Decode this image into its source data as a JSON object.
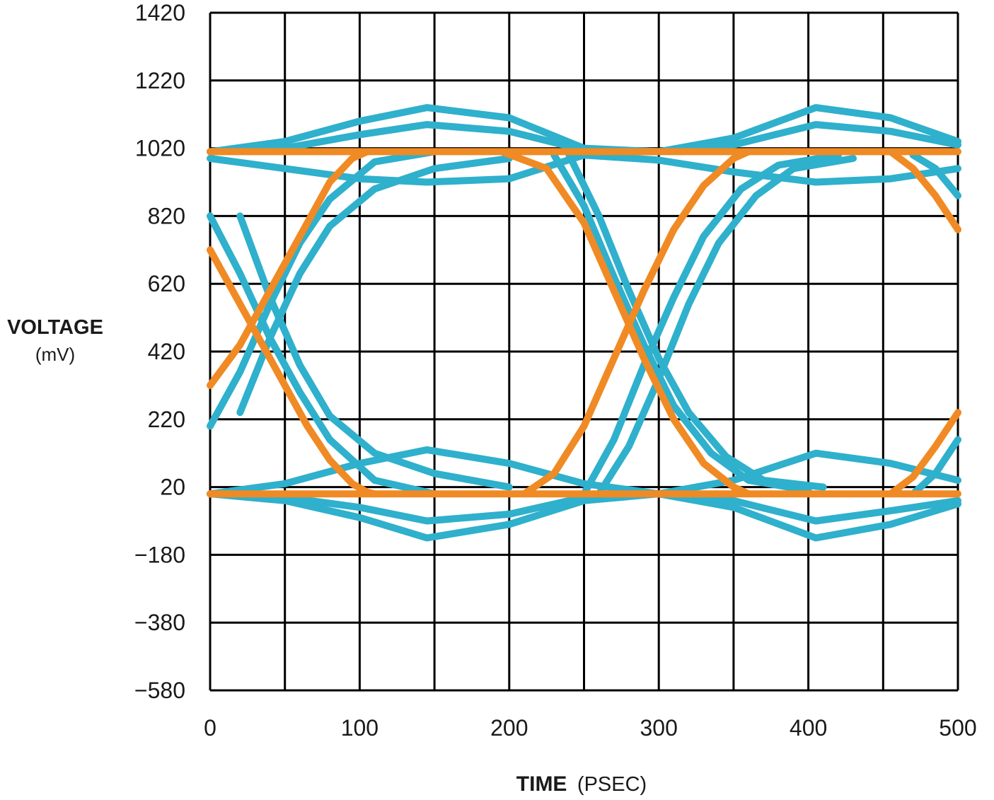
{
  "chart_data": {
    "type": "line",
    "title": "",
    "xlabel": "TIME",
    "xlabel_unit": "(PSEC)",
    "ylabel": "VOLTAGE",
    "ylabel_unit": "(mV)",
    "xlim": [
      0,
      500
    ],
    "ylim": [
      -580,
      1420
    ],
    "xticks": [
      0,
      100,
      200,
      300,
      400,
      500
    ],
    "xtick_labels": [
      "0",
      "100",
      "200",
      "300",
      "400",
      "500"
    ],
    "xgrid": [
      0,
      50,
      100,
      150,
      200,
      250,
      300,
      350,
      400,
      450,
      500
    ],
    "yticks": [
      1420,
      1220,
      1020,
      820,
      620,
      420,
      220,
      20,
      -180,
      -380,
      -580
    ],
    "ytick_labels": [
      "1420",
      "1220",
      "1020",
      "820",
      "620",
      "420",
      "220",
      "20",
      "−180",
      "−380",
      "−580"
    ],
    "grid": true,
    "legend": "none",
    "colors": {
      "cyan": "#2fb0cc",
      "orange": "#f08a24",
      "grid": "#000000"
    },
    "series": [
      {
        "color": "#f08a24",
        "traces": [
          {
            "x": [
              0,
              200,
              230,
              300,
              350,
              450,
              500
            ],
            "y": [
              1010,
              1010,
              1010,
              1010,
              1010,
              1010,
              1010
            ]
          },
          {
            "x": [
              0,
              100,
              200,
              300,
              350,
              450,
              500
            ],
            "y": [
              0,
              0,
              0,
              0,
              0,
              0,
              0
            ]
          },
          {
            "x": [
              0,
              20,
              45,
              65,
              80,
              95,
              105,
              110
            ],
            "y": [
              720,
              560,
              360,
              200,
              100,
              30,
              5,
              0
            ]
          },
          {
            "x": [
              0,
              20,
              45,
              65,
              80,
              95,
              105
            ],
            "y": [
              320,
              440,
              640,
              800,
              920,
              990,
              1010
            ]
          },
          {
            "x": [
              195,
              225,
              250,
              270,
              290,
              310,
              330,
              350,
              360
            ],
            "y": [
              1010,
              960,
              800,
              600,
              400,
              220,
              90,
              20,
              0
            ]
          },
          {
            "x": [
              210,
              230,
              250,
              270,
              290,
              310,
              330,
              350,
              360
            ],
            "y": [
              0,
              60,
              200,
              400,
              600,
              780,
              910,
              990,
              1010
            ]
          },
          {
            "x": [
              455,
              470,
              485,
              500
            ],
            "y": [
              1010,
              960,
              880,
              780
            ]
          },
          {
            "x": [
              455,
              470,
              485,
              500
            ],
            "y": [
              0,
              50,
              140,
              240
            ]
          }
        ]
      },
      {
        "color": "#2fb0cc",
        "traces": [
          {
            "x": [
              0,
              50,
              100,
              145,
              200,
              250,
              300,
              350,
              405,
              455,
              500
            ],
            "y": [
              1010,
              1040,
              1100,
              1140,
              1110,
              1020,
              1010,
              1050,
              1140,
              1110,
              1040
            ]
          },
          {
            "x": [
              0,
              50,
              100,
              145,
              200,
              250,
              300,
              350,
              405,
              455,
              500
            ],
            "y": [
              1010,
              1020,
              1060,
              1090,
              1070,
              1015,
              1010,
              1030,
              1090,
              1070,
              1030
            ]
          },
          {
            "x": [
              0,
              50,
              100,
              145,
              200,
              250,
              300,
              350,
              405,
              455,
              500
            ],
            "y": [
              990,
              960,
              930,
              920,
              930,
              1000,
              985,
              950,
              920,
              930,
              960
            ]
          },
          {
            "x": [
              0,
              50,
              100,
              145,
              200,
              250,
              300,
              350,
              405,
              455,
              500
            ],
            "y": [
              0,
              30,
              90,
              130,
              90,
              30,
              0,
              40,
              120,
              90,
              40
            ]
          },
          {
            "x": [
              0,
              50,
              100,
              145,
              200,
              250,
              300,
              350,
              405,
              455,
              500
            ],
            "y": [
              0,
              -20,
              -70,
              -130,
              -90,
              -20,
              0,
              -40,
              -130,
              -90,
              -30
            ]
          },
          {
            "x": [
              0,
              50,
              100,
              145,
              200,
              250,
              300,
              350,
              405,
              455,
              500
            ],
            "y": [
              0,
              -10,
              -40,
              -80,
              -60,
              -10,
              0,
              -20,
              -80,
              -50,
              -20
            ]
          },
          {
            "x": [
              0,
              20,
              40,
              60,
              80,
              110,
              150
            ],
            "y": [
              820,
              650,
              460,
              300,
              160,
              40,
              0
            ]
          },
          {
            "x": [
              0,
              20,
              40,
              60,
              80,
              110,
              150
            ],
            "y": [
              200,
              360,
              560,
              740,
              870,
              980,
              1010
            ]
          },
          {
            "x": [
              20,
              40,
              60,
              80,
              110,
              150,
              200
            ],
            "y": [
              820,
              580,
              380,
              230,
              120,
              60,
              20
            ]
          },
          {
            "x": [
              20,
              40,
              60,
              80,
              110,
              150,
              200
            ],
            "y": [
              240,
              460,
              650,
              790,
              900,
              960,
              990
            ]
          },
          {
            "x": [
              230,
              250,
              270,
              290,
              310,
              335,
              360,
              400
            ],
            "y": [
              1000,
              850,
              640,
              440,
              260,
              120,
              40,
              10
            ]
          },
          {
            "x": [
              240,
              260,
              280,
              300,
              320,
              345,
              370,
              410
            ],
            "y": [
              1000,
              820,
              600,
              400,
              240,
              110,
              40,
              20
            ]
          },
          {
            "x": [
              250,
              270,
              290,
              310,
              330,
              355,
              380,
              420
            ],
            "y": [
              0,
              160,
              380,
              580,
              760,
              900,
              970,
              1000
            ]
          },
          {
            "x": [
              260,
              280,
              300,
              320,
              340,
              365,
              390,
              430
            ],
            "y": [
              0,
              140,
              340,
              560,
              740,
              880,
              960,
              990
            ]
          },
          {
            "x": [
              470,
              485,
              500
            ],
            "y": [
              0,
              60,
              160
            ]
          },
          {
            "x": [
              470,
              485,
              500
            ],
            "y": [
              1000,
              960,
              880
            ]
          }
        ]
      }
    ]
  }
}
